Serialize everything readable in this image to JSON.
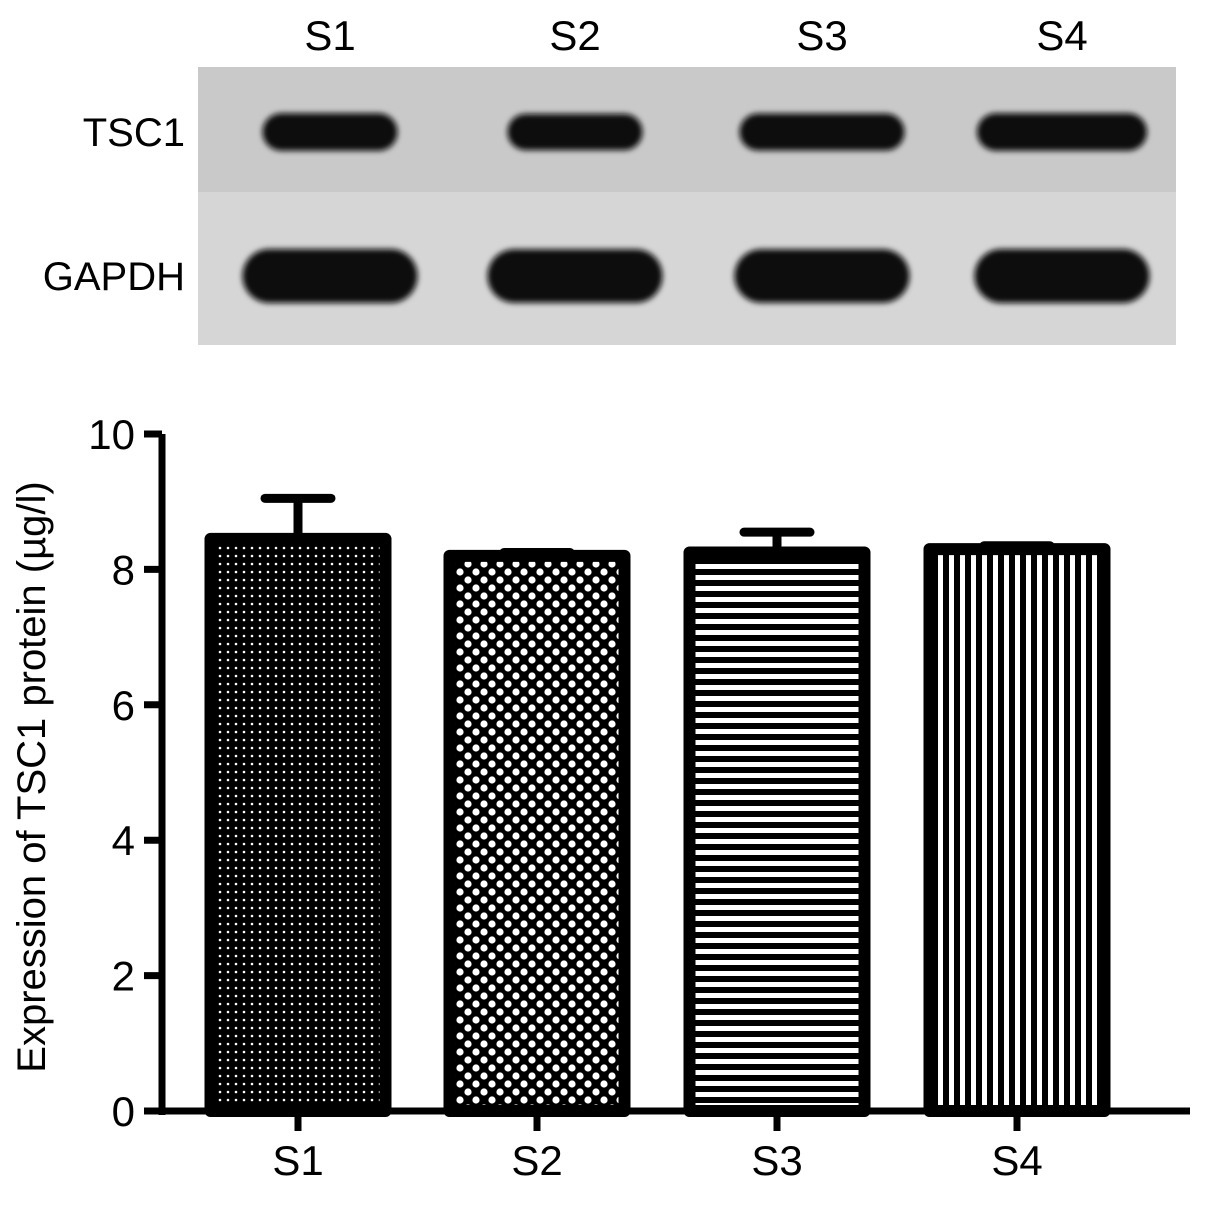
{
  "blot": {
    "lanes": [
      "S1",
      "S2",
      "S3",
      "S4"
    ],
    "rows": [
      {
        "label": "TSC1",
        "band_intensity": [
          0.92,
          0.78,
          0.88,
          0.92
        ]
      },
      {
        "label": "GAPDH",
        "band_intensity": [
          1.0,
          0.96,
          0.96,
          1.0
        ]
      }
    ]
  },
  "chart_data": {
    "type": "bar",
    "title": "",
    "xlabel": "",
    "ylabel": "Expression of TSC1 protein (µg/l)",
    "categories": [
      "S1",
      "S2",
      "S3",
      "S4"
    ],
    "values": [
      8.45,
      8.2,
      8.25,
      8.3
    ],
    "error": [
      0.6,
      0.05,
      0.3,
      0.05
    ],
    "patterns": [
      "fine-dots",
      "coarse-dots",
      "horizontal-lines",
      "vertical-lines"
    ],
    "ylim": [
      0,
      10
    ],
    "yticks": [
      0,
      2,
      4,
      6,
      8,
      10
    ],
    "grid": false,
    "legend": false
  }
}
